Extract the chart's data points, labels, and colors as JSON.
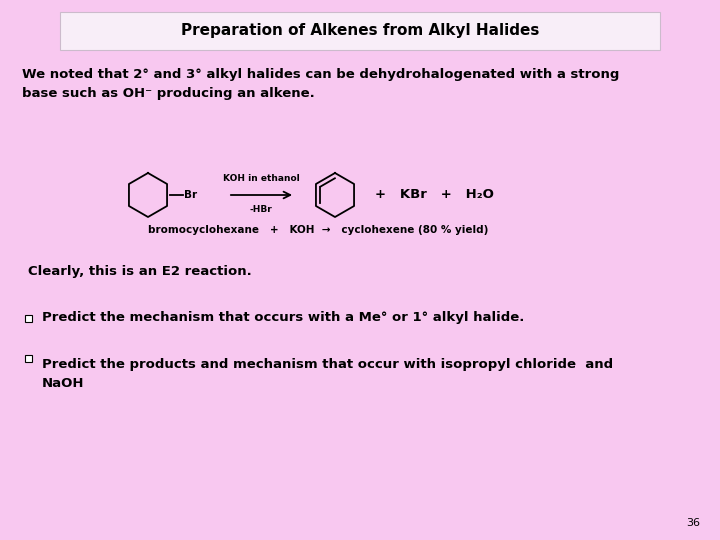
{
  "title": "Preparation of Alkenes from Alkyl Halides",
  "bg_color": "#F8C8F0",
  "title_box_color": "#F8EEF8",
  "title_fontsize": 11,
  "body_fontsize": 9.5,
  "small_fontsize": 7.5,
  "page_number": "36",
  "intro_text": "We noted that 2° and 3° alkyl halides can be dehydrohalogenated with a strong\nbase such as OH⁻ producing an alkene.",
  "reaction_label": "bromocyclohexane   +   KOH  →   cyclohexene (80 % yield)",
  "above_arrow_text": "KOH in ethanol",
  "below_arrow_text": "-HBr",
  "products_text": "+   KBr   +   H₂O",
  "bullet1": "Predict the mechanism that occurs with a Me° or 1° alkyl halide.",
  "bullet2": "Predict the products and mechanism that occur with isopropyl chloride  and\nNaOH",
  "clearly_text": "Clearly, this is an E2 reaction."
}
